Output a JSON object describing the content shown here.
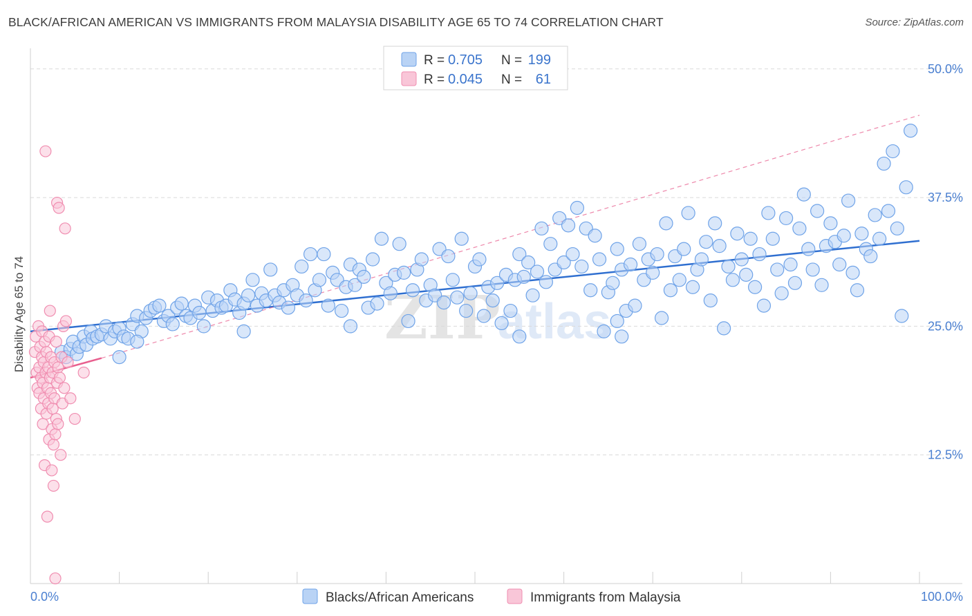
{
  "title": "BLACK/AFRICAN AMERICAN VS IMMIGRANTS FROM MALAYSIA DISABILITY AGE 65 TO 74 CORRELATION CHART",
  "source": "Source: ZipAtlas.com",
  "watermark": {
    "zip": "ZIP",
    "atlas": "atlas"
  },
  "colors": {
    "blue": "#6fa3e8",
    "blue_fill": "#b9d3f5",
    "blue_line": "#2f6fd0",
    "pink": "#f08db0",
    "pink_fill": "#f9c6d8",
    "pink_line": "#e85f8e",
    "grid": "#d9d9d9",
    "tick_text": "#4a7fd0"
  },
  "legend": {
    "rows": [
      {
        "r_label": "R =",
        "r_value": "0.705",
        "n_label": "N =",
        "n_value": "199",
        "color": "blue"
      },
      {
        "r_label": "R =",
        "r_value": "0.045",
        "n_label": "N =",
        "n_value": "61",
        "color": "pink"
      }
    ]
  },
  "chart_data": {
    "type": "scatter",
    "title": "BLACK/AFRICAN AMERICAN VS IMMIGRANTS FROM MALAYSIA DISABILITY AGE 65 TO 74 CORRELATION CHART",
    "xlabel": "",
    "ylabel": "Disability Age 65 to 74",
    "xlim": [
      0,
      100
    ],
    "ylim": [
      0,
      52
    ],
    "x_tick_labels": [
      "0.0%",
      "100.0%"
    ],
    "y_ticks": [
      12.5,
      25.0,
      37.5,
      50.0
    ],
    "y_tick_labels": [
      "12.5%",
      "25.0%",
      "37.5%",
      "50.0%"
    ],
    "grid": "horizontal dashed",
    "legend_position": "top-center",
    "series": [
      {
        "name": "Blacks/African Americans",
        "color": "blue",
        "trend": {
          "x": [
            0,
            100
          ],
          "y": [
            24.5,
            33.3
          ]
        },
        "points": [
          [
            3.5,
            22.5
          ],
          [
            4.0,
            22.0
          ],
          [
            4.5,
            22.8
          ],
          [
            4.8,
            23.5
          ],
          [
            5.2,
            22.3
          ],
          [
            5.5,
            23.0
          ],
          [
            6.0,
            24.0
          ],
          [
            6.3,
            23.2
          ],
          [
            6.8,
            24.5
          ],
          [
            7.0,
            23.8
          ],
          [
            7.5,
            24.0
          ],
          [
            8.0,
            24.2
          ],
          [
            8.5,
            25.0
          ],
          [
            9.0,
            23.8
          ],
          [
            9.5,
            24.5
          ],
          [
            10.0,
            24.8
          ],
          [
            10.5,
            24.0
          ],
          [
            11.0,
            23.8
          ],
          [
            11.5,
            25.2
          ],
          [
            12.0,
            26.0
          ],
          [
            12.5,
            24.5
          ],
          [
            13.0,
            25.8
          ],
          [
            13.5,
            26.5
          ],
          [
            14.0,
            26.8
          ],
          [
            14.5,
            27.0
          ],
          [
            15.0,
            25.5
          ],
          [
            15.5,
            26.0
          ],
          [
            16.0,
            25.2
          ],
          [
            16.5,
            26.8
          ],
          [
            17.0,
            27.2
          ],
          [
            17.5,
            26.0
          ],
          [
            18.0,
            25.8
          ],
          [
            18.5,
            27.0
          ],
          [
            19.0,
            26.3
          ],
          [
            19.5,
            25.0
          ],
          [
            20.0,
            27.8
          ],
          [
            20.5,
            26.5
          ],
          [
            21.0,
            27.5
          ],
          [
            21.5,
            26.8
          ],
          [
            22.0,
            27.0
          ],
          [
            22.5,
            28.5
          ],
          [
            23.0,
            27.6
          ],
          [
            23.5,
            26.3
          ],
          [
            24.0,
            27.2
          ],
          [
            24.5,
            28.0
          ],
          [
            25.0,
            29.5
          ],
          [
            25.5,
            27.0
          ],
          [
            26.0,
            28.2
          ],
          [
            26.5,
            27.5
          ],
          [
            27.0,
            30.5
          ],
          [
            27.5,
            28.0
          ],
          [
            28.0,
            27.3
          ],
          [
            28.5,
            28.5
          ],
          [
            29.0,
            26.8
          ],
          [
            29.5,
            29.0
          ],
          [
            30.0,
            28.0
          ],
          [
            30.5,
            30.8
          ],
          [
            31.0,
            27.5
          ],
          [
            31.5,
            32.0
          ],
          [
            32.0,
            28.5
          ],
          [
            32.5,
            29.5
          ],
          [
            33.0,
            32.0
          ],
          [
            33.5,
            27.0
          ],
          [
            34.0,
            30.2
          ],
          [
            34.5,
            29.5
          ],
          [
            35.0,
            26.5
          ],
          [
            35.5,
            28.8
          ],
          [
            36.0,
            31.0
          ],
          [
            36.5,
            29.0
          ],
          [
            37.0,
            30.5
          ],
          [
            37.5,
            29.8
          ],
          [
            38.0,
            26.8
          ],
          [
            38.5,
            31.5
          ],
          [
            39.0,
            27.2
          ],
          [
            39.5,
            33.5
          ],
          [
            40.0,
            29.2
          ],
          [
            40.5,
            28.2
          ],
          [
            41.0,
            30.0
          ],
          [
            41.5,
            33.0
          ],
          [
            42.0,
            30.2
          ],
          [
            42.5,
            25.5
          ],
          [
            43.0,
            28.5
          ],
          [
            43.5,
            30.5
          ],
          [
            44.0,
            31.5
          ],
          [
            44.5,
            27.5
          ],
          [
            45.0,
            29.0
          ],
          [
            45.5,
            28.0
          ],
          [
            46.0,
            32.5
          ],
          [
            46.5,
            27.3
          ],
          [
            47.0,
            31.8
          ],
          [
            47.5,
            29.5
          ],
          [
            48.0,
            27.8
          ],
          [
            48.5,
            33.5
          ],
          [
            49.0,
            26.5
          ],
          [
            49.5,
            28.2
          ],
          [
            50.0,
            30.8
          ],
          [
            50.5,
            31.5
          ],
          [
            51.0,
            26.0
          ],
          [
            51.5,
            28.8
          ],
          [
            52.0,
            27.5
          ],
          [
            52.5,
            29.2
          ],
          [
            53.0,
            25.3
          ],
          [
            53.5,
            30.0
          ],
          [
            54.0,
            26.5
          ],
          [
            54.5,
            29.5
          ],
          [
            55.0,
            32.0
          ],
          [
            55.5,
            29.8
          ],
          [
            56.0,
            31.2
          ],
          [
            56.5,
            28.0
          ],
          [
            57.0,
            30.3
          ],
          [
            57.5,
            34.5
          ],
          [
            58.0,
            29.3
          ],
          [
            58.5,
            33.0
          ],
          [
            59.0,
            30.5
          ],
          [
            59.5,
            35.5
          ],
          [
            60.0,
            31.2
          ],
          [
            60.5,
            34.8
          ],
          [
            61.0,
            32.0
          ],
          [
            61.5,
            36.5
          ],
          [
            62.0,
            30.8
          ],
          [
            62.5,
            34.5
          ],
          [
            63.0,
            28.5
          ],
          [
            63.5,
            33.8
          ],
          [
            64.0,
            31.5
          ],
          [
            64.5,
            24.5
          ],
          [
            65.0,
            28.3
          ],
          [
            65.5,
            29.2
          ],
          [
            66.0,
            32.5
          ],
          [
            66.5,
            30.5
          ],
          [
            67.0,
            26.5
          ],
          [
            67.5,
            31.0
          ],
          [
            68.0,
            27.0
          ],
          [
            68.5,
            33.0
          ],
          [
            69.0,
            29.5
          ],
          [
            69.5,
            31.5
          ],
          [
            70.0,
            30.2
          ],
          [
            70.5,
            32.0
          ],
          [
            71.0,
            25.8
          ],
          [
            71.5,
            35.0
          ],
          [
            72.0,
            28.5
          ],
          [
            72.5,
            31.8
          ],
          [
            73.0,
            29.5
          ],
          [
            73.5,
            32.5
          ],
          [
            74.0,
            36.0
          ],
          [
            74.5,
            28.8
          ],
          [
            75.0,
            30.5
          ],
          [
            75.5,
            31.5
          ],
          [
            76.0,
            33.2
          ],
          [
            76.5,
            27.5
          ],
          [
            77.0,
            35.0
          ],
          [
            77.5,
            32.8
          ],
          [
            78.0,
            24.8
          ],
          [
            78.5,
            30.8
          ],
          [
            79.0,
            29.5
          ],
          [
            79.5,
            34.0
          ],
          [
            80.0,
            31.5
          ],
          [
            80.5,
            30.0
          ],
          [
            81.0,
            33.5
          ],
          [
            81.5,
            28.8
          ],
          [
            82.0,
            32.0
          ],
          [
            82.5,
            27.0
          ],
          [
            83.0,
            36.0
          ],
          [
            83.5,
            33.5
          ],
          [
            84.0,
            30.5
          ],
          [
            84.5,
            28.2
          ],
          [
            85.0,
            35.5
          ],
          [
            85.5,
            31.0
          ],
          [
            86.0,
            29.2
          ],
          [
            86.5,
            34.5
          ],
          [
            87.0,
            37.8
          ],
          [
            87.5,
            32.5
          ],
          [
            88.0,
            30.5
          ],
          [
            88.5,
            36.2
          ],
          [
            89.0,
            29.0
          ],
          [
            89.5,
            32.8
          ],
          [
            90.0,
            35.0
          ],
          [
            90.5,
            33.2
          ],
          [
            91.0,
            31.0
          ],
          [
            91.5,
            33.8
          ],
          [
            92.0,
            37.2
          ],
          [
            92.5,
            30.2
          ],
          [
            93.0,
            28.5
          ],
          [
            93.5,
            34.0
          ],
          [
            94.0,
            32.5
          ],
          [
            94.5,
            31.8
          ],
          [
            95.0,
            35.8
          ],
          [
            95.5,
            33.5
          ],
          [
            96.0,
            40.8
          ],
          [
            96.5,
            36.2
          ],
          [
            97.0,
            42.0
          ],
          [
            97.5,
            34.5
          ],
          [
            98.0,
            26.0
          ],
          [
            98.5,
            38.5
          ],
          [
            99.0,
            44.0
          ],
          [
            66.5,
            24.0
          ],
          [
            66.0,
            25.5
          ],
          [
            36.0,
            25.0
          ],
          [
            24.0,
            24.5
          ],
          [
            10.0,
            22.0
          ],
          [
            12.0,
            23.5
          ],
          [
            55.0,
            24.0
          ]
        ]
      },
      {
        "name": "Immigrants from Malaysia",
        "color": "pink",
        "trend": {
          "x": [
            0,
            8
          ],
          "y": [
            20.0,
            21.9
          ]
        },
        "trend_extension": {
          "x": [
            8,
            100
          ],
          "y": [
            21.9,
            45.5
          ]
        },
        "points": [
          [
            0.5,
            22.5
          ],
          [
            0.6,
            24.0
          ],
          [
            0.7,
            20.5
          ],
          [
            0.8,
            19.0
          ],
          [
            0.9,
            25.0
          ],
          [
            1.0,
            21.0
          ],
          [
            1.0,
            18.5
          ],
          [
            1.1,
            23.0
          ],
          [
            1.2,
            17.0
          ],
          [
            1.2,
            20.0
          ],
          [
            1.3,
            22.0
          ],
          [
            1.3,
            24.5
          ],
          [
            1.4,
            19.5
          ],
          [
            1.4,
            15.5
          ],
          [
            1.5,
            21.5
          ],
          [
            1.5,
            18.0
          ],
          [
            1.6,
            23.5
          ],
          [
            1.6,
            11.5
          ],
          [
            1.7,
            20.5
          ],
          [
            1.7,
            42.0
          ],
          [
            1.8,
            16.5
          ],
          [
            1.8,
            22.5
          ],
          [
            1.9,
            19.0
          ],
          [
            1.9,
            6.5
          ],
          [
            2.0,
            21.0
          ],
          [
            2.0,
            17.5
          ],
          [
            2.1,
            24.0
          ],
          [
            2.1,
            14.0
          ],
          [
            2.2,
            20.0
          ],
          [
            2.2,
            26.5
          ],
          [
            2.3,
            18.5
          ],
          [
            2.3,
            22.0
          ],
          [
            2.4,
            15.0
          ],
          [
            2.4,
            11.0
          ],
          [
            2.5,
            20.5
          ],
          [
            2.5,
            17.0
          ],
          [
            2.6,
            13.5
          ],
          [
            2.6,
            9.5
          ],
          [
            2.7,
            21.5
          ],
          [
            2.7,
            18.0
          ],
          [
            2.8,
            14.5
          ],
          [
            2.8,
            0.5
          ],
          [
            2.9,
            23.5
          ],
          [
            2.9,
            16.0
          ],
          [
            3.0,
            19.5
          ],
          [
            3.0,
            37.0
          ],
          [
            3.1,
            21.0
          ],
          [
            3.1,
            15.5
          ],
          [
            3.2,
            36.5
          ],
          [
            3.3,
            20.0
          ],
          [
            3.4,
            12.5
          ],
          [
            3.5,
            22.0
          ],
          [
            3.6,
            17.5
          ],
          [
            3.7,
            25.0
          ],
          [
            3.8,
            19.0
          ],
          [
            3.9,
            34.5
          ],
          [
            4.0,
            25.5
          ],
          [
            4.2,
            21.5
          ],
          [
            4.5,
            18.0
          ],
          [
            5.0,
            16.0
          ],
          [
            6.0,
            20.5
          ]
        ]
      }
    ]
  },
  "bottom_legend": [
    {
      "label": "Blacks/African Americans",
      "color": "blue"
    },
    {
      "label": "Immigrants from Malaysia",
      "color": "pink"
    }
  ]
}
